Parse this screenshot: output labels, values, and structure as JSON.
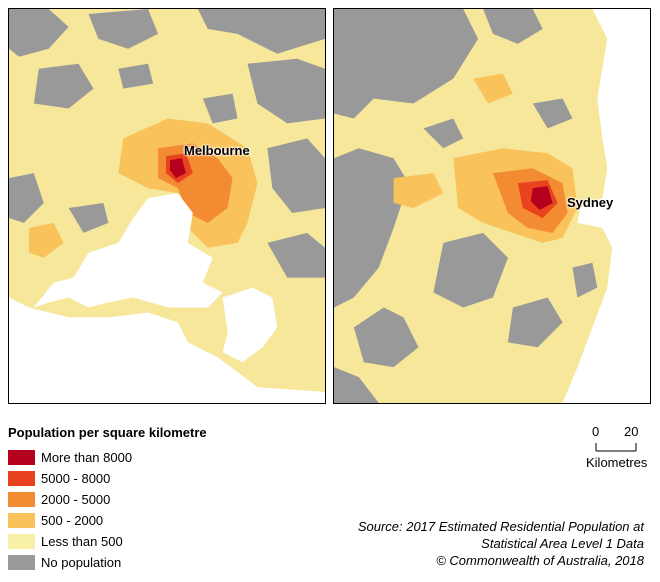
{
  "maps": [
    {
      "id": "melbourne",
      "city": "Melbourne"
    },
    {
      "id": "sydney",
      "city": "Sydney"
    }
  ],
  "legend": {
    "title": "Population per square kilometre",
    "items": [
      {
        "label": "More than 8000",
        "color": "#b5001d"
      },
      {
        "label": "5000 - 8000",
        "color": "#e8431e"
      },
      {
        "label": "2000 - 5000",
        "color": "#f28b32"
      },
      {
        "label": "500 - 2000",
        "color": "#f9c25a"
      },
      {
        "label": "Less than 500",
        "color": "#f9f0a8"
      },
      {
        "label": "No population",
        "color": "#999999"
      }
    ]
  },
  "scale": {
    "start": "0",
    "end": "20",
    "unit": "Kilometres"
  },
  "source": {
    "line1": "Source: 2017 Estimated Residential Population at",
    "line2": "Statistical Area Level 1 Data",
    "line3": "© Commonwealth of Australia, 2018"
  }
}
